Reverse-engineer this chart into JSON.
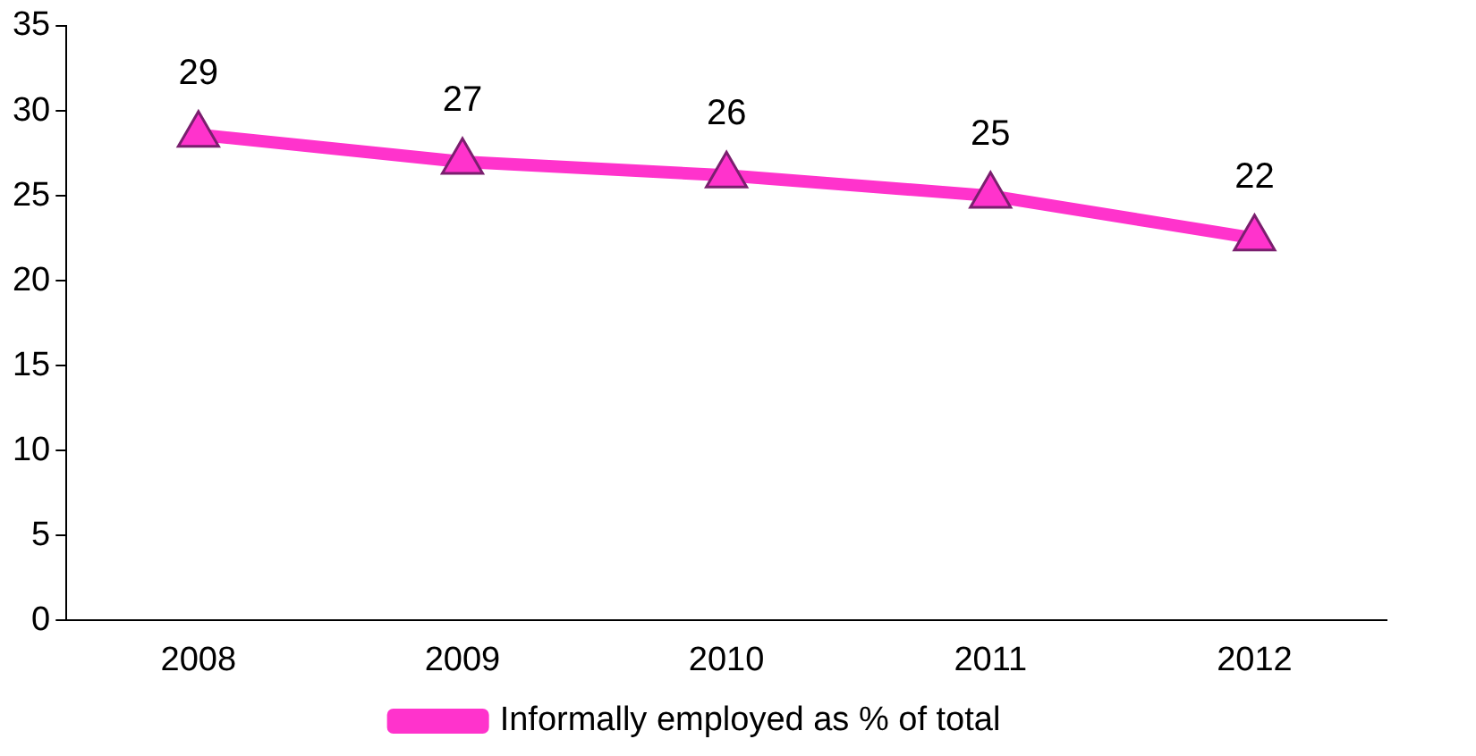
{
  "chart_data": {
    "type": "line",
    "categories": [
      "2008",
      "2009",
      "2010",
      "2011",
      "2012"
    ],
    "series": [
      {
        "name": "Informally employed as % of total",
        "color": "#ff33cc",
        "values": [
          28.6,
          27.0,
          26.2,
          25.0,
          22.5
        ],
        "value_labels": [
          "29",
          "27",
          "26",
          "25",
          "22"
        ]
      }
    ],
    "ylim": [
      0,
      35
    ],
    "yticks": [
      0,
      5,
      10,
      15,
      20,
      25,
      30,
      35
    ],
    "grid": false,
    "legend": "bottom",
    "marker": "triangle",
    "line_style": "solid"
  }
}
